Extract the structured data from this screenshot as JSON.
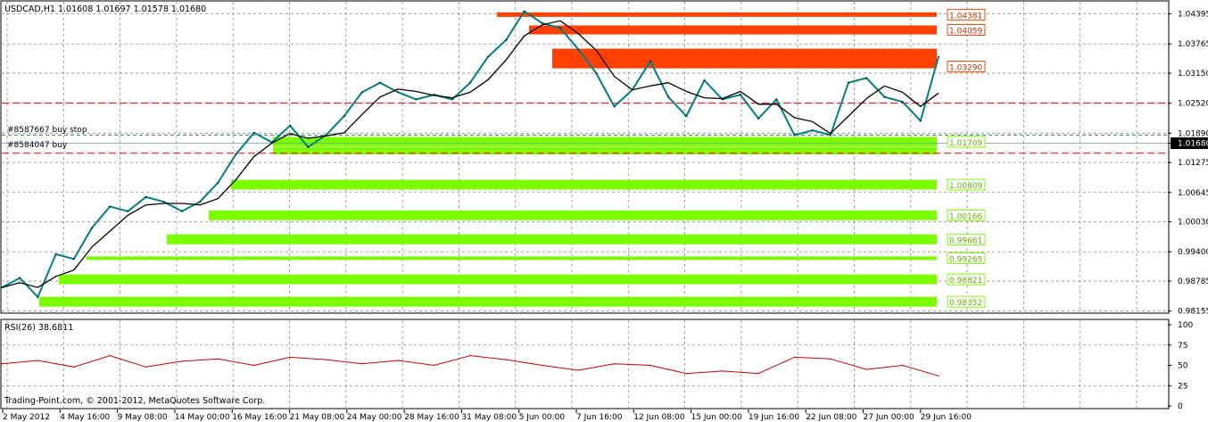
{
  "chart_data": [
    {
      "type": "line",
      "title": "USDCAD,H1  1.01608 1.01697 1.01578 1.01680",
      "footer": "Trading-Point.com, © 2001-2012, MetaQuotes Software Corp.",
      "ylim": [
        0.9813,
        1.0465
      ],
      "y_ticks": [
        1.04395,
        1.03765,
        1.0315,
        1.0252,
        1.0189,
        1.0168,
        1.01275,
        1.00645,
        1.0003,
        0.994,
        0.98785,
        0.98155
      ],
      "y_tick_labels": [
        "1.04395",
        "1.03765",
        "1.03150",
        "1.02520",
        "1.01890",
        "1.01680",
        "1.01275",
        "1.00645",
        "1.00030",
        "0.99400",
        "0.98785",
        "0.98155"
      ],
      "current_price": 1.0168,
      "x_tick_labels": [
        "2 May 2012",
        "4 May 16:00",
        "9 May 08:00",
        "14 May 00:00",
        "16 May 16:00",
        "21 May 08:00",
        "24 May 00:00",
        "28 May 16:00",
        "31 May 08:00",
        "5 Jun 00:00",
        "7 Jun 16:00",
        "12 Jun 08:00",
        "15 Jun 00:00",
        "19 Jun 16:00",
        "22 Jun 08:00",
        "27 Jun 00:00",
        "29 Jun 16:00"
      ],
      "x": [
        0,
        2,
        4,
        6,
        8,
        10,
        12,
        14,
        16,
        18,
        20,
        22,
        24,
        26,
        28,
        30,
        32,
        34,
        36,
        38,
        40,
        42,
        44,
        46,
        48,
        50,
        52,
        54,
        56,
        58,
        60,
        62,
        64,
        66,
        68,
        70,
        72,
        74,
        76,
        78,
        80,
        82,
        84,
        86,
        88,
        90,
        92,
        94,
        96,
        98,
        100,
        102,
        104
      ],
      "series": [
        {
          "values": [
            0.9865,
            0.9885,
            0.9845,
            0.9935,
            0.9925,
            0.999,
            1.0035,
            1.0025,
            1.0055,
            1.0045,
            1.0025,
            1.0045,
            1.0085,
            1.0145,
            1.019,
            1.017,
            1.0205,
            1.016,
            1.0185,
            1.0225,
            1.0275,
            1.0295,
            1.0275,
            1.026,
            1.027,
            1.026,
            1.0295,
            1.035,
            1.0385,
            1.0445,
            1.042,
            1.041,
            1.0365,
            1.0315,
            1.0245,
            1.028,
            1.034,
            1.0265,
            1.0225,
            1.03,
            1.026,
            1.027,
            1.022,
            1.026,
            1.0185,
            1.0195,
            1.0185,
            1.0295,
            1.0305,
            1.0265,
            1.0255,
            1.0215,
            1.035
          ]
        }
      ],
      "levels": [
        {
          "label": "1.04381",
          "value": 1.04381,
          "kind": "sell"
        },
        {
          "label": "1.04059",
          "value": 1.04059,
          "kind": "sell"
        },
        {
          "label": "1.03290",
          "value": 1.0329,
          "kind": "sell"
        },
        {
          "label": "1.01709",
          "value": 1.01709,
          "kind": "buy"
        },
        {
          "label": "1.00809",
          "value": 1.00809,
          "kind": "buy"
        },
        {
          "label": "1.00166",
          "value": 1.00166,
          "kind": "buy"
        },
        {
          "label": "0.99661",
          "value": 0.99661,
          "kind": "buy"
        },
        {
          "label": "0.99265",
          "value": 0.99265,
          "kind": "buy"
        },
        {
          "label": "0.98821",
          "value": 0.98821,
          "kind": "buy"
        },
        {
          "label": "0.98352",
          "value": 0.98352,
          "kind": "buy"
        }
      ],
      "order_labels": [
        "#8587667 buy stop",
        "#8584047 buy"
      ],
      "colors": {
        "sell_zone": "#ff4000",
        "buy_zone": "#7cfc00",
        "price": "#000000",
        "ma": "#008080",
        "grid": "#8a8a8a",
        "order_line": "#ff0000"
      }
    },
    {
      "type": "line",
      "title": "RSI(26) 38.6811",
      "ylim": [
        0,
        100
      ],
      "y_ticks": [
        100,
        75,
        50,
        25,
        0
      ],
      "y_tick_labels": [
        "100",
        "75",
        "50",
        "25",
        "0"
      ],
      "current_value": 38.6811,
      "x": [
        0,
        4,
        8,
        12,
        16,
        20,
        24,
        28,
        32,
        36,
        40,
        44,
        48,
        52,
        56,
        60,
        64,
        68,
        72,
        76,
        80,
        84,
        88,
        92,
        96,
        100,
        104
      ],
      "series": [
        {
          "values": [
            52,
            56,
            48,
            62,
            48,
            55,
            58,
            50,
            60,
            57,
            52,
            56,
            50,
            62,
            57,
            50,
            44,
            52,
            50,
            40,
            43,
            40,
            60,
            58,
            45,
            50,
            37
          ]
        }
      ],
      "colors": {
        "line": "#cc0000",
        "level": "#8a8a8a"
      }
    }
  ]
}
